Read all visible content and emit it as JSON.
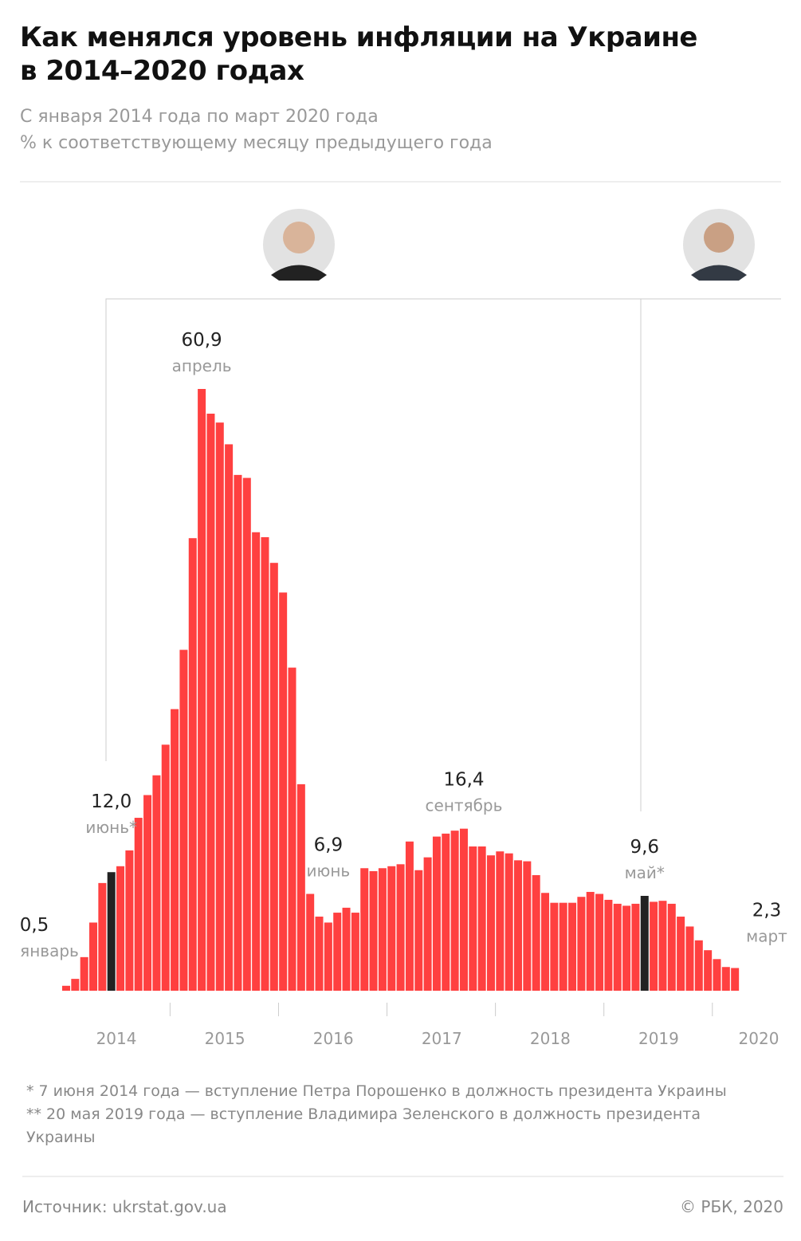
{
  "header": {
    "title_lines": [
      "Как менялся уровень инфляции на Украине",
      "в 2014–2020 годах"
    ],
    "subtitle_lines": [
      "С января 2014 года по март 2020 года",
      "% к соответствующему месяцу предыдущего года"
    ]
  },
  "chart_data": {
    "type": "bar",
    "categories": [
      null,
      null,
      null,
      null,
      null,
      null,
      null,
      null,
      null,
      null,
      null,
      null,
      null,
      null,
      null,
      null,
      null,
      null,
      null,
      null,
      null,
      null,
      null,
      null,
      null,
      null,
      null,
      null,
      null,
      null,
      null,
      null,
      null,
      null,
      null,
      null,
      null,
      null,
      null,
      null,
      null,
      null,
      null,
      null,
      null,
      null,
      null,
      null,
      null,
      null,
      null,
      null,
      null,
      null,
      null,
      null,
      null,
      null,
      null,
      null,
      null,
      null,
      null,
      null,
      null,
      null,
      null,
      null,
      null,
      null,
      null,
      null,
      null,
      null,
      null
    ],
    "values": [
      0.5,
      1.2,
      3.4,
      6.9,
      10.9,
      12.0,
      12.6,
      14.2,
      17.5,
      19.8,
      21.8,
      24.9,
      28.5,
      34.5,
      45.8,
      60.9,
      58.4,
      57.5,
      55.3,
      52.2,
      51.9,
      46.4,
      45.9,
      43.3,
      40.3,
      32.7,
      20.9,
      9.8,
      7.5,
      6.9,
      7.9,
      8.4,
      7.9,
      12.4,
      12.1,
      12.4,
      12.6,
      12.8,
      15.1,
      12.2,
      13.5,
      15.6,
      15.9,
      16.2,
      16.4,
      14.6,
      14.6,
      13.7,
      14.1,
      13.9,
      13.2,
      13.1,
      11.7,
      9.9,
      8.9,
      8.9,
      8.9,
      9.5,
      10.0,
      9.8,
      9.2,
      8.8,
      8.6,
      8.8,
      9.6,
      9.0,
      9.1,
      8.8,
      7.5,
      6.5,
      5.1,
      4.1,
      3.2,
      2.4,
      2.3
    ],
    "value_labels": [
      "0,5",
      null,
      null,
      null,
      null,
      "12,0",
      null,
      null,
      null,
      null,
      null,
      null,
      null,
      null,
      null,
      "60,9",
      null,
      null,
      null,
      null,
      null,
      null,
      null,
      null,
      null,
      null,
      null,
      null,
      null,
      "6,9",
      null,
      null,
      null,
      null,
      null,
      null,
      null,
      null,
      null,
      null,
      null,
      null,
      null,
      null,
      "16,4",
      null,
      null,
      null,
      null,
      null,
      null,
      null,
      null,
      null,
      null,
      null,
      null,
      null,
      null,
      null,
      null,
      null,
      null,
      null,
      "9,6",
      null,
      null,
      null,
      null,
      null,
      null,
      null,
      null,
      null,
      "2,3"
    ],
    "annotations": [
      "январь",
      null,
      null,
      null,
      null,
      "июнь*",
      null,
      null,
      null,
      null,
      null,
      null,
      null,
      null,
      null,
      "апрель",
      null,
      null,
      null,
      null,
      null,
      null,
      null,
      null,
      null,
      null,
      null,
      null,
      null,
      "июнь",
      null,
      null,
      null,
      null,
      null,
      null,
      null,
      null,
      null,
      null,
      null,
      null,
      null,
      null,
      "сентябрь",
      null,
      null,
      null,
      null,
      null,
      null,
      null,
      null,
      null,
      null,
      null,
      null,
      null,
      null,
      null,
      null,
      null,
      null,
      null,
      "май*",
      null,
      null,
      null,
      null,
      null,
      null,
      null,
      null,
      null,
      "март"
    ],
    "colors": [
      "#ff4040",
      "#ff4040",
      "#ff4040",
      "#ff4040",
      "#ff4040",
      "#222222",
      "#ff4040",
      "#ff4040",
      "#ff4040",
      "#ff4040",
      "#ff4040",
      "#ff4040",
      "#ff4040",
      "#ff4040",
      "#ff4040",
      "#ff4040",
      "#ff4040",
      "#ff4040",
      "#ff4040",
      "#ff4040",
      "#ff4040",
      "#ff4040",
      "#ff4040",
      "#ff4040",
      "#ff4040",
      "#ff4040",
      "#ff4040",
      "#ff4040",
      "#ff4040",
      "#ff4040",
      "#ff4040",
      "#ff4040",
      "#ff4040",
      "#ff4040",
      "#ff4040",
      "#ff4040",
      "#ff4040",
      "#ff4040",
      "#ff4040",
      "#ff4040",
      "#ff4040",
      "#ff4040",
      "#ff4040",
      "#ff4040",
      "#ff4040",
      "#ff4040",
      "#ff4040",
      "#ff4040",
      "#ff4040",
      "#ff4040",
      "#ff4040",
      "#ff4040",
      "#ff4040",
      "#ff4040",
      "#ff4040",
      "#ff4040",
      "#ff4040",
      "#ff4040",
      "#ff4040",
      "#ff4040",
      "#ff4040",
      "#ff4040",
      "#ff4040",
      "#ff4040",
      "#222222",
      "#ff4040",
      "#ff4040",
      "#ff4040",
      "#ff4040",
      "#ff4040",
      "#ff4040",
      "#ff4040",
      "#ff4040",
      "#ff4040",
      "#ff4040"
    ],
    "year_labels": [
      "2014",
      "2015",
      "2016",
      "2017",
      "2018",
      "2019",
      "2020"
    ]
  },
  "footer": {
    "notes": [
      "* 7 июня 2014 года — вступление Петра Порошенко в должность президента Украины",
      "** 20 мая 2019 года — вступление Владимира Зеленского в должность президента Украины"
    ],
    "source": "Источник: ukrstat.gov.ua",
    "copyright": "© РБК, 2020"
  }
}
